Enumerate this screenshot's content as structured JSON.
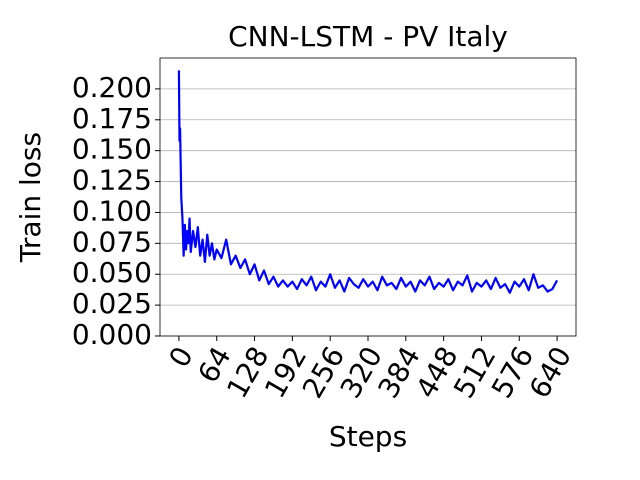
{
  "chart_data": {
    "type": "line",
    "title": "CNN-LSTM - PV Italy",
    "x_label": "Steps",
    "y_label": "Train loss",
    "x": [
      0,
      1,
      2,
      3,
      4,
      6,
      8,
      10,
      12,
      14,
      16,
      18,
      20,
      24,
      28,
      32,
      36,
      40,
      44,
      48,
      52,
      56,
      60,
      64,
      72,
      80,
      88,
      96,
      104,
      112,
      120,
      128,
      136,
      144,
      152,
      160,
      168,
      176,
      184,
      192,
      200,
      208,
      216,
      224,
      232,
      240,
      248,
      256,
      264,
      272,
      280,
      288,
      296,
      304,
      312,
      320,
      328,
      336,
      344,
      352,
      360,
      368,
      376,
      384,
      392,
      400,
      408,
      416,
      424,
      432,
      440,
      448,
      456,
      464,
      472,
      480,
      488,
      496,
      504,
      512,
      520,
      528,
      536,
      544,
      552,
      560,
      568,
      576,
      584,
      592,
      600,
      608,
      616,
      624,
      632,
      640
    ],
    "series": [
      {
        "name": "Train loss",
        "color": "#0000ff",
        "values": [
          0.215,
          0.158,
          0.168,
          0.14,
          0.112,
          0.095,
          0.065,
          0.09,
          0.07,
          0.085,
          0.075,
          0.095,
          0.068,
          0.085,
          0.072,
          0.088,
          0.065,
          0.078,
          0.06,
          0.082,
          0.065,
          0.075,
          0.062,
          0.07,
          0.063,
          0.078,
          0.058,
          0.065,
          0.055,
          0.062,
          0.05,
          0.058,
          0.045,
          0.053,
          0.042,
          0.048,
          0.04,
          0.045,
          0.04,
          0.044,
          0.038,
          0.046,
          0.041,
          0.048,
          0.037,
          0.044,
          0.04,
          0.05,
          0.039,
          0.045,
          0.036,
          0.047,
          0.042,
          0.039,
          0.046,
          0.04,
          0.044,
          0.037,
          0.048,
          0.041,
          0.043,
          0.038,
          0.047,
          0.04,
          0.044,
          0.036,
          0.045,
          0.041,
          0.048,
          0.038,
          0.043,
          0.04,
          0.046,
          0.037,
          0.044,
          0.041,
          0.049,
          0.036,
          0.043,
          0.04,
          0.045,
          0.038,
          0.047,
          0.039,
          0.042,
          0.035,
          0.044,
          0.04,
          0.046,
          0.037,
          0.05,
          0.039,
          0.041,
          0.036,
          0.038,
          0.045
        ]
      }
    ],
    "xlim": [
      -32,
      672
    ],
    "xticks": [
      0,
      64,
      128,
      192,
      256,
      320,
      384,
      448,
      512,
      576,
      640
    ],
    "ylim": [
      0,
      0.225
    ],
    "yticks": [
      {
        "value": 0,
        "label": "0.000"
      },
      {
        "value": 0.025,
        "label": "0.025"
      },
      {
        "value": 0.05,
        "label": "0.050"
      },
      {
        "value": 0.075,
        "label": "0.075"
      },
      {
        "value": 0.1,
        "label": "0.100"
      },
      {
        "value": 0.125,
        "label": "0.125"
      },
      {
        "value": 0.15,
        "label": "0.150"
      },
      {
        "value": 0.175,
        "label": "0.175"
      },
      {
        "value": 0.2,
        "label": "0.200"
      }
    ],
    "grid": "y"
  }
}
